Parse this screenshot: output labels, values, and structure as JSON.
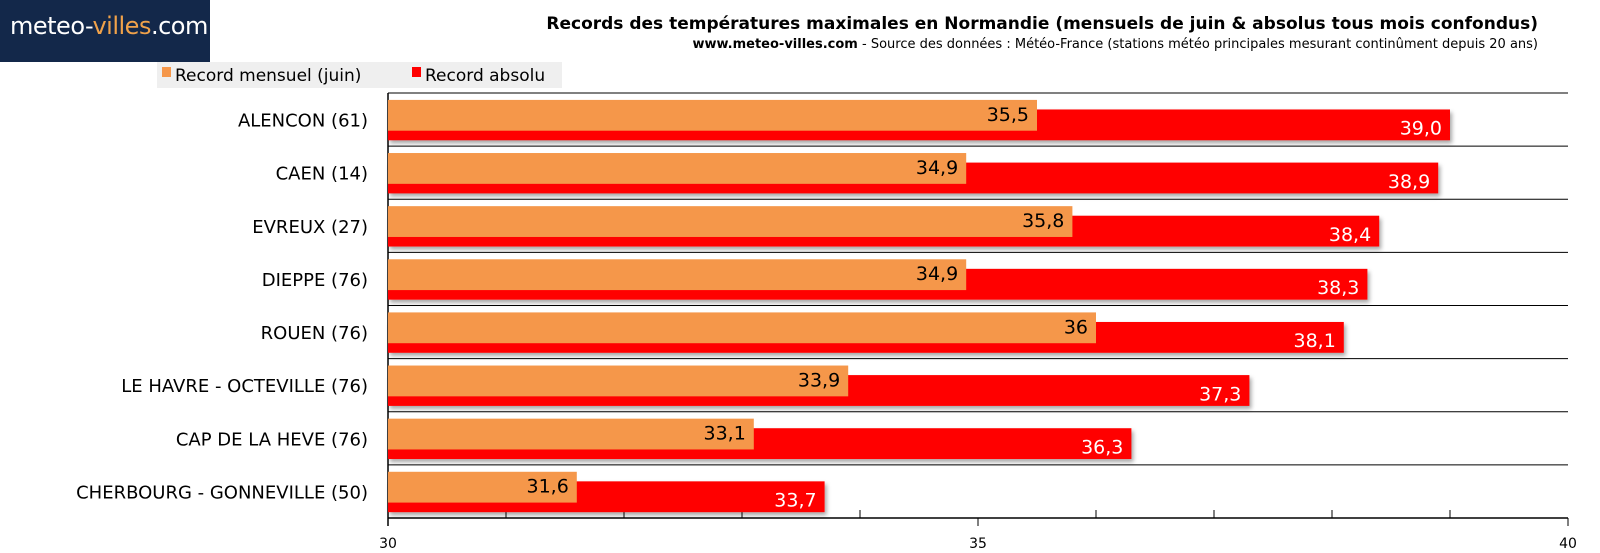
{
  "brand": {
    "part1": "meteo-",
    "part2": "villes",
    "part3": ".com",
    "accent_color": "#f0a24a",
    "bg_color": "#13284a"
  },
  "header": {
    "title": "Records des températures maximales en Normandie (mensuels de juin & absolus tous mois confondus)",
    "subtitle_site": "www.meteo-villes.com",
    "subtitle_rest": " - Source des données : Météo-France (stations météo principales mesurant continûment depuis 20 ans)"
  },
  "chart_data": {
    "type": "bar",
    "orientation": "horizontal",
    "categories": [
      "ALENCON (61)",
      "CAEN (14)",
      "EVREUX (27)",
      "DIEPPE (76)",
      "ROUEN (76)",
      "LE HAVRE - OCTEVILLE (76)",
      "CAP DE LA HEVE (76)",
      "CHERBOURG - GONNEVILLE (50)"
    ],
    "series": [
      {
        "name": "Record mensuel (juin)",
        "color": "#f5974a",
        "values": [
          35.5,
          34.9,
          35.8,
          34.9,
          36,
          33.9,
          33.1,
          31.6
        ],
        "labels": [
          "35,5",
          "34,9",
          "35,8",
          "34,9",
          "36",
          "33,9",
          "33,1",
          "31,6"
        ]
      },
      {
        "name": "Record absolu",
        "color": "#ff0000",
        "values": [
          39.0,
          38.9,
          38.4,
          38.3,
          38.1,
          37.3,
          36.3,
          33.7
        ],
        "labels": [
          "39,0",
          "38,9",
          "38,4",
          "38,3",
          "38,1",
          "37,3",
          "36,3",
          "33,7"
        ]
      }
    ],
    "xlim": [
      30,
      40
    ],
    "xticks": [
      30,
      35,
      40
    ],
    "xtick_labels": [
      "30",
      "35",
      "40"
    ],
    "legend_position": "top-left",
    "grid": true
  }
}
